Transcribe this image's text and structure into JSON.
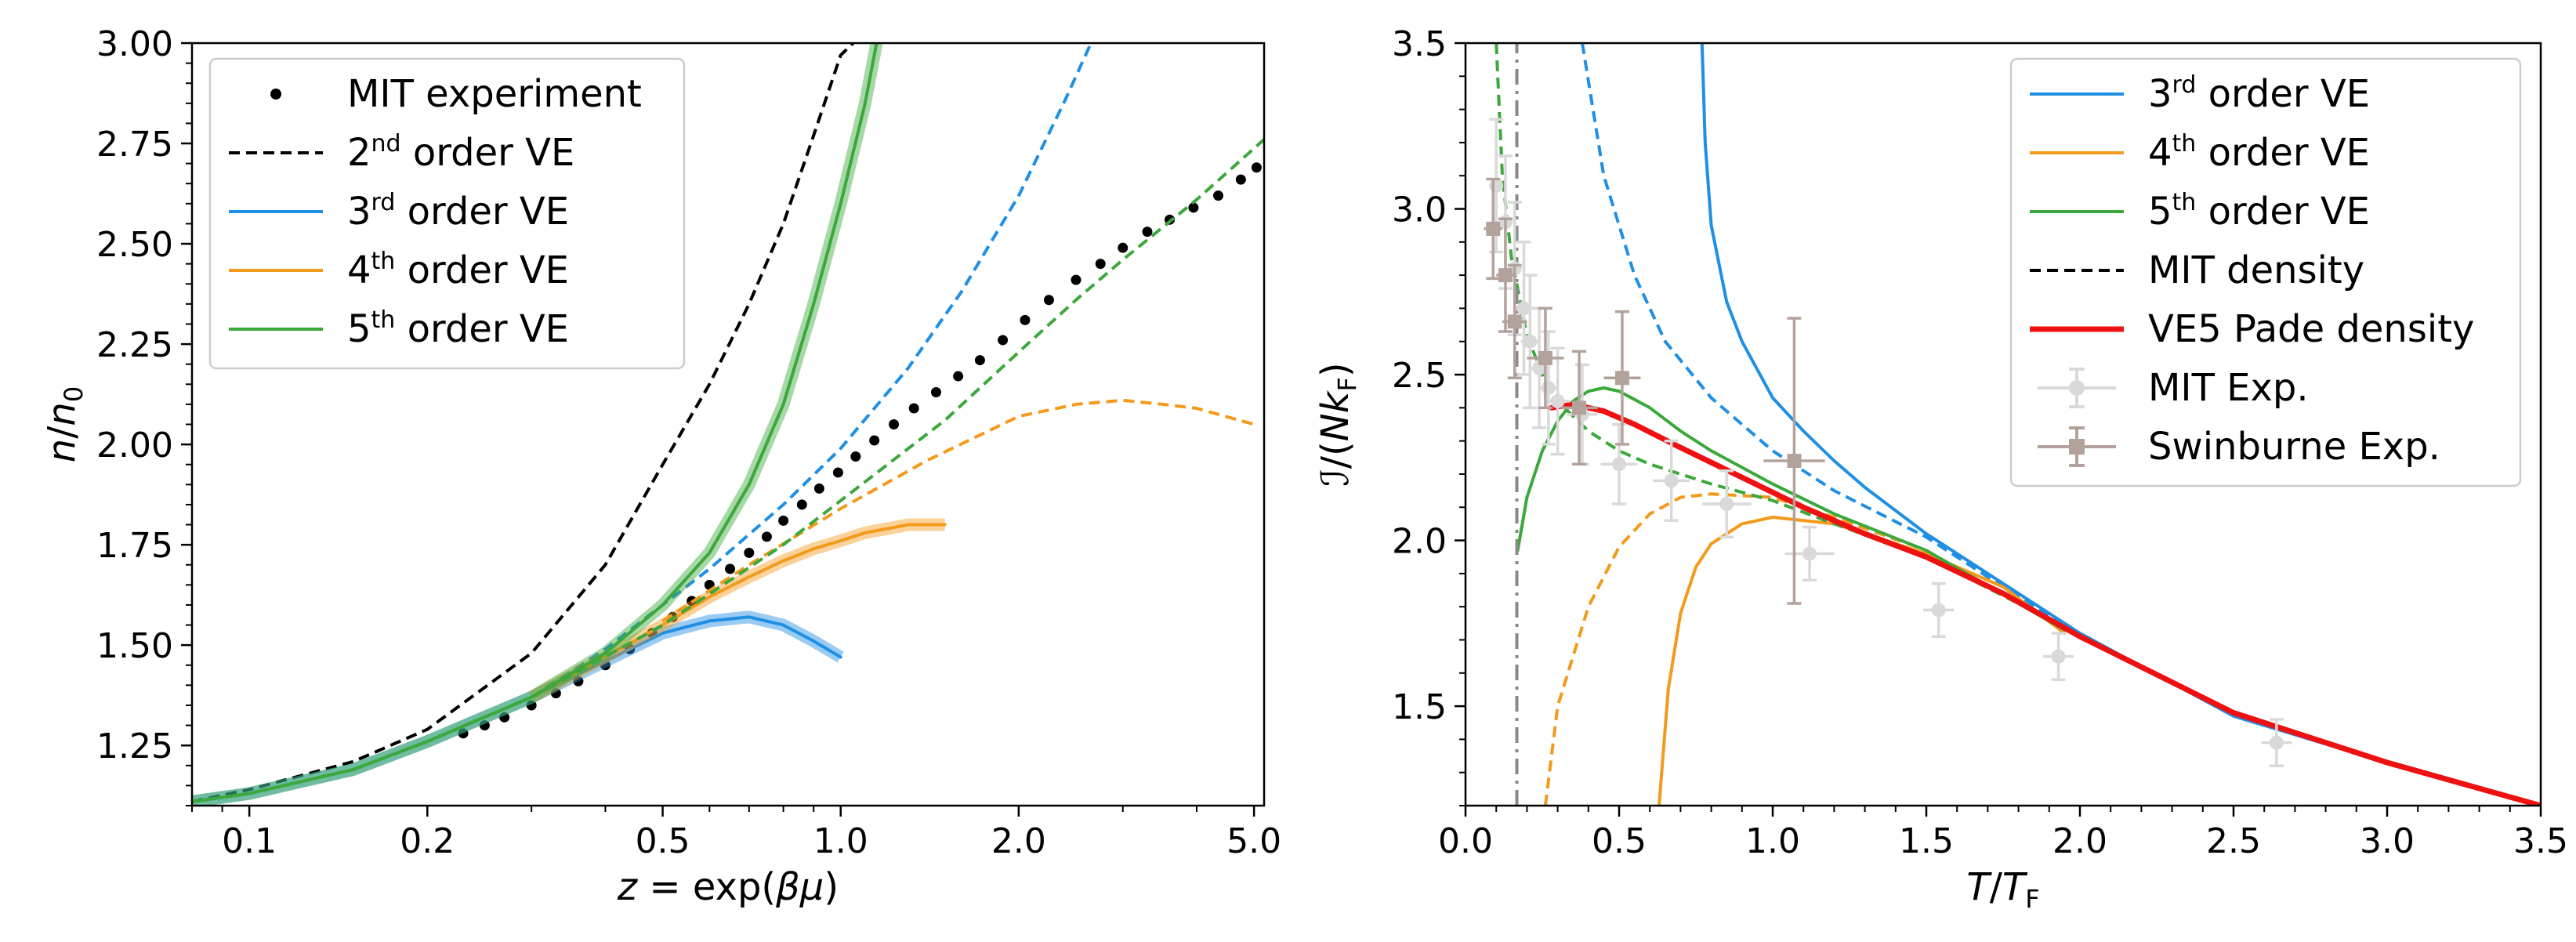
{
  "chart_data": [
    {
      "type": "line",
      "xscale": "log",
      "xlabel": "z = exp(βμ)",
      "ylabel": "n/n0",
      "xlim": [
        0.08,
        5.2
      ],
      "ylim": [
        1.1,
        3.0
      ],
      "xticks": [
        {
          "value": 0.1,
          "label": "0.1"
        },
        {
          "value": 0.2,
          "label": "0.2"
        },
        {
          "value": 0.5,
          "label": "0.5"
        },
        {
          "value": 1.0,
          "label": "1.0"
        },
        {
          "value": 2.0,
          "label": "2.0"
        },
        {
          "value": 5.0,
          "label": "5.0"
        }
      ],
      "yticks": [
        {
          "value": 1.25,
          "label": "1.25"
        },
        {
          "value": 1.5,
          "label": "1.50"
        },
        {
          "value": 1.75,
          "label": "1.75"
        },
        {
          "value": 2.0,
          "label": "2.00"
        },
        {
          "value": 2.25,
          "label": "2.25"
        },
        {
          "value": 2.5,
          "label": "2.50"
        },
        {
          "value": 2.75,
          "label": "2.75"
        },
        {
          "value": 3.0,
          "label": "3.00"
        }
      ],
      "legend": {
        "placement": "top-left",
        "entries": [
          {
            "label": "MIT experiment",
            "order": "",
            "rest": "",
            "style": "dots",
            "color": "#000000"
          },
          {
            "label": "2",
            "order": "nd",
            "rest": " order VE",
            "style": "dashed",
            "color": "#000000"
          },
          {
            "label": "3",
            "order": "rd",
            "rest": " order VE",
            "style": "solid",
            "color": "#1f8fe5"
          },
          {
            "label": "4",
            "order": "th",
            "rest": " order VE",
            "style": "solid",
            "color": "#f39a1c"
          },
          {
            "label": "5",
            "order": "th",
            "rest": " order VE",
            "style": "solid",
            "color": "#3ca83c"
          }
        ]
      },
      "series": [
        {
          "name": "MIT experiment",
          "style": "dots",
          "color": "#000000",
          "x": [
            0.23,
            0.25,
            0.27,
            0.3,
            0.33,
            0.36,
            0.4,
            0.44,
            0.48,
            0.52,
            0.56,
            0.6,
            0.65,
            0.7,
            0.75,
            0.8,
            0.86,
            0.92,
            0.99,
            1.06,
            1.14,
            1.23,
            1.33,
            1.45,
            1.58,
            1.72,
            1.88,
            2.05,
            2.25,
            2.5,
            2.75,
            3.0,
            3.3,
            3.6,
            3.95,
            4.35,
            4.75,
            5.05
          ],
          "y": [
            1.28,
            1.3,
            1.32,
            1.35,
            1.38,
            1.41,
            1.45,
            1.49,
            1.53,
            1.57,
            1.61,
            1.65,
            1.69,
            1.73,
            1.77,
            1.81,
            1.85,
            1.89,
            1.93,
            1.97,
            2.01,
            2.05,
            2.09,
            2.13,
            2.17,
            2.21,
            2.26,
            2.31,
            2.36,
            2.41,
            2.45,
            2.49,
            2.53,
            2.56,
            2.59,
            2.62,
            2.66,
            2.69
          ]
        },
        {
          "name": "2nd order VE",
          "style": "dashed",
          "color": "#000000",
          "x": [
            0.08,
            0.1,
            0.15,
            0.2,
            0.3,
            0.4,
            0.5,
            0.6,
            0.7,
            0.8,
            0.9,
            1.0,
            1.05
          ],
          "y": [
            1.11,
            1.14,
            1.21,
            1.29,
            1.48,
            1.7,
            1.95,
            2.15,
            2.35,
            2.55,
            2.77,
            2.97,
            3.0
          ]
        },
        {
          "name": "3rd order VE",
          "style": "solid",
          "color": "#1f8fe5",
          "x": [
            0.08,
            0.1,
            0.15,
            0.2,
            0.3,
            0.4,
            0.5,
            0.6,
            0.7,
            0.8,
            0.9,
            1.0
          ],
          "y": [
            1.11,
            1.13,
            1.19,
            1.26,
            1.37,
            1.46,
            1.53,
            1.56,
            1.57,
            1.55,
            1.51,
            1.47
          ]
        },
        {
          "name": "3rd order VE dashed",
          "style": "dashed",
          "color": "#1f8fe5",
          "x": [
            0.3,
            0.4,
            0.5,
            0.6,
            0.8,
            1.0,
            1.3,
            1.6,
            2.0,
            2.4,
            2.65
          ],
          "y": [
            1.37,
            1.49,
            1.6,
            1.69,
            1.85,
            1.99,
            2.19,
            2.38,
            2.62,
            2.86,
            3.0
          ]
        },
        {
          "name": "4th order VE",
          "style": "solid",
          "color": "#f39a1c",
          "x": [
            0.3,
            0.4,
            0.5,
            0.6,
            0.7,
            0.8,
            0.9,
            1.0,
            1.1,
            1.2,
            1.3,
            1.5
          ],
          "y": [
            1.37,
            1.47,
            1.55,
            1.62,
            1.67,
            1.71,
            1.74,
            1.76,
            1.78,
            1.79,
            1.8,
            1.8
          ]
        },
        {
          "name": "4th order VE dashed",
          "style": "dashed",
          "color": "#f39a1c",
          "x": [
            0.5,
            0.7,
            1.0,
            1.4,
            2.0,
            2.5,
            3.0,
            3.5,
            4.0,
            5.0
          ],
          "y": [
            1.56,
            1.7,
            1.84,
            1.96,
            2.07,
            2.1,
            2.11,
            2.1,
            2.09,
            2.05
          ]
        },
        {
          "name": "5th order VE",
          "style": "solid",
          "color": "#3ca83c",
          "x": [
            0.08,
            0.1,
            0.15,
            0.2,
            0.3,
            0.4,
            0.5,
            0.6,
            0.7,
            0.8,
            0.9,
            1.0,
            1.1,
            1.15
          ],
          "y": [
            1.11,
            1.13,
            1.19,
            1.26,
            1.37,
            1.48,
            1.6,
            1.73,
            1.9,
            2.1,
            2.35,
            2.6,
            2.85,
            3.0
          ]
        },
        {
          "name": "5th order VE dashed",
          "style": "dashed",
          "color": "#3ca83c",
          "x": [
            0.3,
            0.5,
            0.8,
            1.0,
            1.5,
            2.0,
            2.5,
            3.0,
            4.0,
            5.2
          ],
          "y": [
            1.37,
            1.55,
            1.75,
            1.86,
            2.06,
            2.23,
            2.36,
            2.46,
            2.61,
            2.76
          ]
        }
      ]
    },
    {
      "type": "line",
      "xlabel": "T/TF",
      "ylabel": "I/(NkF)",
      "xlim": [
        0.0,
        3.5
      ],
      "ylim": [
        1.2,
        3.5
      ],
      "xticks": [
        {
          "value": 0.0,
          "label": "0.0"
        },
        {
          "value": 0.5,
          "label": "0.5"
        },
        {
          "value": 1.0,
          "label": "1.0"
        },
        {
          "value": 1.5,
          "label": "1.5"
        },
        {
          "value": 2.0,
          "label": "2.0"
        },
        {
          "value": 2.5,
          "label": "2.5"
        },
        {
          "value": 3.0,
          "label": "3.0"
        },
        {
          "value": 3.5,
          "label": "3.5"
        }
      ],
      "yticks": [
        {
          "value": 1.5,
          "label": "1.5"
        },
        {
          "value": 2.0,
          "label": "2.0"
        },
        {
          "value": 2.5,
          "label": "2.5"
        },
        {
          "value": 3.0,
          "label": "3.0"
        },
        {
          "value": 3.5,
          "label": "3.5"
        }
      ],
      "legend": {
        "placement": "top-right",
        "entries": [
          {
            "label": "3",
            "order": "rd",
            "rest": " order VE",
            "style": "solid",
            "color": "#1f8fe5"
          },
          {
            "label": "4",
            "order": "th",
            "rest": " order VE",
            "style": "solid",
            "color": "#f39a1c"
          },
          {
            "label": "5",
            "order": "th",
            "rest": " order VE",
            "style": "solid",
            "color": "#3ca83c"
          },
          {
            "label": "MIT density",
            "order": "",
            "rest": "",
            "style": "dashed",
            "color": "#000000"
          },
          {
            "label": "VE5 Pade density",
            "order": "",
            "rest": "",
            "style": "thick",
            "color": "#ee1111"
          },
          {
            "label": "MIT Exp.",
            "order": "",
            "rest": "",
            "style": "errorbar",
            "color": "#d9d9d9"
          },
          {
            "label": "Swinburne Exp.",
            "order": "",
            "rest": "",
            "style": "errorbar-square",
            "color": "#b3a29c"
          }
        ]
      },
      "series": [
        {
          "name": "3rd order VE",
          "style": "solid",
          "color": "#1f8fe5",
          "x": [
            0.77,
            0.78,
            0.8,
            0.85,
            0.9,
            1.0,
            1.1,
            1.2,
            1.3,
            1.5,
            1.75,
            2.0,
            2.5,
            3.0,
            3.5
          ],
          "y": [
            3.5,
            3.2,
            2.95,
            2.72,
            2.6,
            2.43,
            2.33,
            2.24,
            2.16,
            2.02,
            1.87,
            1.72,
            1.47,
            1.33,
            1.2
          ]
        },
        {
          "name": "3rd order VE dashed",
          "style": "dashed",
          "color": "#1f8fe5",
          "x": [
            0.38,
            0.45,
            0.55,
            0.65,
            0.8,
            1.0,
            1.2,
            1.5,
            1.75,
            1.95
          ],
          "y": [
            3.5,
            3.1,
            2.8,
            2.6,
            2.43,
            2.27,
            2.15,
            2.01,
            1.86,
            1.74
          ]
        },
        {
          "name": "4th order VE",
          "style": "solid",
          "color": "#f39a1c",
          "x": [
            0.63,
            0.66,
            0.7,
            0.75,
            0.8,
            0.9,
            1.0,
            1.2,
            1.5,
            1.75,
            1.95
          ],
          "y": [
            1.2,
            1.55,
            1.78,
            1.92,
            1.99,
            2.05,
            2.07,
            2.05,
            1.96,
            1.86,
            1.72
          ]
        },
        {
          "name": "4th order VE dashed",
          "style": "dashed",
          "color": "#f39a1c",
          "x": [
            0.26,
            0.3,
            0.4,
            0.5,
            0.6,
            0.7,
            0.8,
            1.0,
            1.2,
            1.5,
            1.95
          ],
          "y": [
            1.2,
            1.5,
            1.8,
            1.98,
            2.08,
            2.13,
            2.14,
            2.13,
            2.07,
            1.97,
            1.73
          ]
        },
        {
          "name": "5th order VE",
          "style": "solid",
          "color": "#3ca83c",
          "x": [
            0.17,
            0.2,
            0.25,
            0.3,
            0.35,
            0.4,
            0.45,
            0.5,
            0.6,
            0.7,
            0.8,
            1.0,
            1.2,
            1.5,
            1.95
          ],
          "y": [
            1.97,
            2.13,
            2.27,
            2.36,
            2.42,
            2.45,
            2.46,
            2.45,
            2.4,
            2.33,
            2.27,
            2.17,
            2.08,
            1.97,
            1.73
          ]
        },
        {
          "name": "5th order VE dashed",
          "style": "dashed",
          "color": "#3ca83c",
          "x": [
            0.1,
            0.12,
            0.15,
            0.2,
            0.25,
            0.3,
            0.4,
            0.5,
            0.6,
            0.7,
            0.8,
            1.0,
            1.2,
            1.5,
            1.95
          ],
          "y": [
            3.5,
            3.1,
            2.85,
            2.62,
            2.5,
            2.42,
            2.33,
            2.27,
            2.23,
            2.2,
            2.17,
            2.12,
            2.05,
            1.95,
            1.74
          ]
        },
        {
          "name": "MIT density (Tc)",
          "style": "dashdot",
          "color": "#888888",
          "x": [
            0.167,
            0.167
          ],
          "y": [
            1.2,
            3.5
          ]
        },
        {
          "name": "VE5 Pade density",
          "style": "thick",
          "color": "#ee1111",
          "x": [
            0.28,
            0.35,
            0.45,
            0.55,
            0.7,
            0.9,
            1.1,
            1.3,
            1.5,
            1.75,
            2.0,
            2.5,
            3.0,
            3.5
          ],
          "y": [
            2.4,
            2.41,
            2.39,
            2.35,
            2.28,
            2.19,
            2.1,
            2.02,
            1.95,
            1.84,
            1.71,
            1.48,
            1.33,
            1.2
          ]
        }
      ],
      "errorbars": [
        {
          "name": "MIT Exp.",
          "color": "#d9d9d9",
          "marker": "circle",
          "points": [
            {
              "x": 0.1,
              "y": 3.07,
              "yerr": 0.2,
              "xerr": 0.02
            },
            {
              "x": 0.13,
              "y": 2.96,
              "yerr": 0.2,
              "xerr": 0.02
            },
            {
              "x": 0.16,
              "y": 2.82,
              "yerr": 0.2,
              "xerr": 0.02
            },
            {
              "x": 0.19,
              "y": 2.7,
              "yerr": 0.2,
              "xerr": 0.03
            },
            {
              "x": 0.21,
              "y": 2.6,
              "yerr": 0.2,
              "xerr": 0.03
            },
            {
              "x": 0.24,
              "y": 2.52,
              "yerr": 0.18,
              "xerr": 0.03
            },
            {
              "x": 0.27,
              "y": 2.46,
              "yerr": 0.17,
              "xerr": 0.03
            },
            {
              "x": 0.3,
              "y": 2.42,
              "yerr": 0.16,
              "xerr": 0.04
            },
            {
              "x": 0.38,
              "y": 2.38,
              "yerr": 0.15,
              "xerr": 0.05
            },
            {
              "x": 0.5,
              "y": 2.23,
              "yerr": 0.12,
              "xerr": 0.06
            },
            {
              "x": 0.67,
              "y": 2.18,
              "yerr": 0.12,
              "xerr": 0.06
            },
            {
              "x": 0.85,
              "y": 2.11,
              "yerr": 0.1,
              "xerr": 0.08
            },
            {
              "x": 1.12,
              "y": 1.96,
              "yerr": 0.08,
              "xerr": 0.08
            },
            {
              "x": 1.54,
              "y": 1.79,
              "yerr": 0.08,
              "xerr": 0.05
            },
            {
              "x": 1.93,
              "y": 1.65,
              "yerr": 0.07,
              "xerr": 0.05
            },
            {
              "x": 2.64,
              "y": 1.39,
              "yerr": 0.07,
              "xerr": 0.05
            }
          ]
        },
        {
          "name": "Swinburne Exp.",
          "color": "#b3a29c",
          "marker": "square",
          "points": [
            {
              "x": 0.09,
              "y": 2.94,
              "yerr": 0.15,
              "xerr": 0.03
            },
            {
              "x": 0.13,
              "y": 2.8,
              "yerr": 0.17,
              "xerr": 0.03
            },
            {
              "x": 0.16,
              "y": 2.66,
              "yerr": 0.17,
              "xerr": 0.04
            },
            {
              "x": 0.26,
              "y": 2.55,
              "yerr": 0.15,
              "xerr": 0.06
            },
            {
              "x": 0.37,
              "y": 2.4,
              "yerr": 0.17,
              "xerr": 0.06
            },
            {
              "x": 0.51,
              "y": 2.49,
              "yerr": 0.2,
              "xerr": 0.06
            },
            {
              "x": 1.07,
              "y": 2.24,
              "yerr": 0.43,
              "xerr": 0.1
            }
          ]
        }
      ]
    }
  ]
}
